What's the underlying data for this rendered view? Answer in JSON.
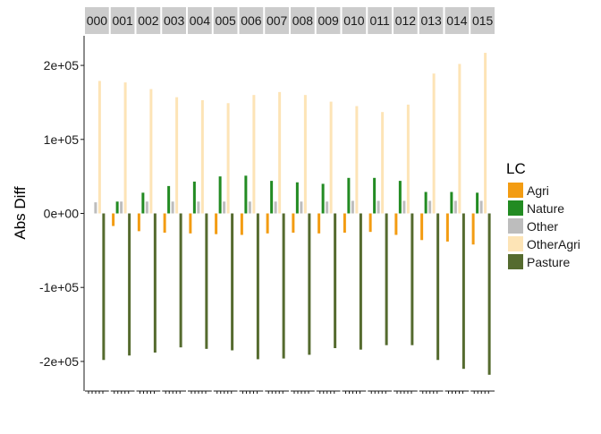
{
  "chart_data": {
    "type": "bar",
    "ylabel": "Abs Diff",
    "ylim": [
      -240000,
      240000
    ],
    "y_ticks": [
      -200000,
      -100000,
      0,
      100000,
      200000
    ],
    "y_tick_labels": [
      "-2e+05",
      "-1e+05",
      "0e+00",
      "1e+05",
      "2e+05"
    ],
    "grid": false,
    "legend_position": "right",
    "facet_strip_labels": [
      "000",
      "001",
      "002",
      "003",
      "004",
      "005",
      "006",
      "007",
      "008",
      "009",
      "010",
      "011",
      "012",
      "013",
      "014",
      "015"
    ],
    "categories": [
      "000",
      "001",
      "002",
      "003",
      "004",
      "005",
      "006",
      "007",
      "008",
      "009",
      "010",
      "011",
      "012",
      "013",
      "014",
      "015"
    ],
    "legend": {
      "title": "LC",
      "entries": [
        "Agri",
        "Nature",
        "Other",
        "OtherAgri",
        "Pasture"
      ]
    },
    "series": [
      {
        "name": "Agri",
        "color": "#f39c12",
        "values": [
          0,
          -17000,
          -24000,
          -26000,
          -27000,
          -28000,
          -29000,
          -27000,
          -26000,
          -27000,
          -26000,
          -25000,
          -29000,
          -36000,
          -38000,
          -42000
        ]
      },
      {
        "name": "Nature",
        "color": "#228b22",
        "values": [
          0,
          16000,
          28000,
          37000,
          43000,
          50000,
          51000,
          44000,
          42000,
          40000,
          48000,
          48000,
          44000,
          29000,
          29000,
          28000
        ]
      },
      {
        "name": "Other",
        "color": "#bdbdbd",
        "values": [
          15000,
          16000,
          16000,
          16000,
          16000,
          16000,
          16000,
          16000,
          16000,
          16000,
          17000,
          17000,
          17000,
          17000,
          17000,
          17000
        ]
      },
      {
        "name": "OtherAgri",
        "color": "#fde4b6",
        "values": [
          179000,
          177000,
          168000,
          157000,
          153000,
          149000,
          160000,
          164000,
          160000,
          151000,
          145000,
          137000,
          147000,
          189000,
          202000,
          217000
        ]
      },
      {
        "name": "Pasture",
        "color": "#556b2f",
        "values": [
          -198000,
          -192000,
          -188000,
          -181000,
          -183000,
          -185000,
          -197000,
          -196000,
          -191000,
          -182000,
          -184000,
          -178000,
          -178000,
          -198000,
          -210000,
          -218000
        ]
      }
    ]
  }
}
